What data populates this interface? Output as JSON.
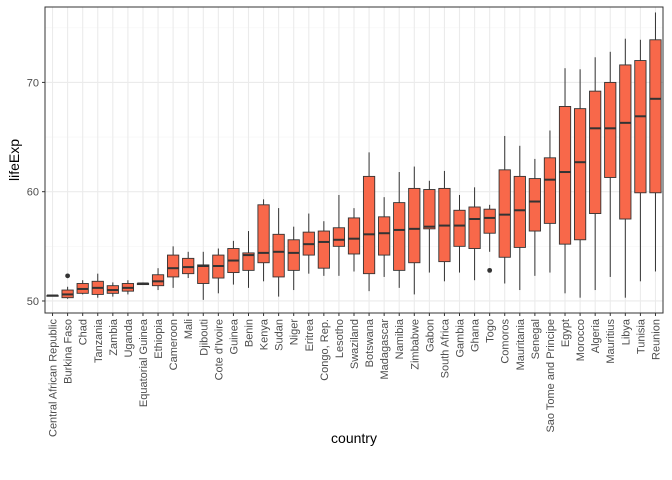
{
  "chart_data": {
    "type": "boxplot",
    "title": "",
    "xlabel": "country",
    "ylabel": "lifeExp",
    "ylim": [
      48.9,
      76.9
    ],
    "yticks": [
      50,
      60,
      70
    ],
    "grid": true,
    "colors": {
      "box_fill": "#F8684A",
      "line": "#333333",
      "panel_border": "#333333",
      "grid_major": "#EBEBEB",
      "grid_minor": "#F5F5F5"
    },
    "boxes": [
      {
        "category": "Central African Republic",
        "min": 50.5,
        "q1": 50.5,
        "median": 50.5,
        "q3": 50.5,
        "max": 50.5,
        "outliers": []
      },
      {
        "category": "Burkina Faso",
        "min": 50.2,
        "q1": 50.3,
        "median": 50.6,
        "q3": 51.0,
        "max": 51.3,
        "outliers": [
          52.3
        ]
      },
      {
        "category": "Chad",
        "min": 50.6,
        "q1": 50.7,
        "median": 51.1,
        "q3": 51.6,
        "max": 51.9,
        "outliers": []
      },
      {
        "category": "Tanzania",
        "min": 50.3,
        "q1": 50.6,
        "median": 51.2,
        "q3": 51.8,
        "max": 52.5,
        "outliers": []
      },
      {
        "category": "Zambia",
        "min": 50.4,
        "q1": 50.7,
        "median": 51.0,
        "q3": 51.4,
        "max": 51.7,
        "outliers": []
      },
      {
        "category": "Uganda",
        "min": 50.6,
        "q1": 50.9,
        "median": 51.2,
        "q3": 51.6,
        "max": 51.9,
        "outliers": []
      },
      {
        "category": "Equatorial Guinea",
        "min": 51.5,
        "q1": 51.5,
        "median": 51.6,
        "q3": 51.6,
        "max": 51.7,
        "outliers": []
      },
      {
        "category": "Ethiopia",
        "min": 51.0,
        "q1": 51.4,
        "median": 51.8,
        "q3": 52.4,
        "max": 53.0,
        "outliers": []
      },
      {
        "category": "Cameroon",
        "min": 51.2,
        "q1": 52.2,
        "median": 53.0,
        "q3": 54.2,
        "max": 55.0,
        "outliers": []
      },
      {
        "category": "Mali",
        "min": 52.1,
        "q1": 52.5,
        "median": 53.1,
        "q3": 53.9,
        "max": 54.5,
        "outliers": []
      },
      {
        "category": "Djibouti",
        "min": 50.1,
        "q1": 51.6,
        "median": 53.2,
        "q3": 53.3,
        "max": 54.5,
        "outliers": []
      },
      {
        "category": "Cote d'Ivoire",
        "min": 50.7,
        "q1": 52.1,
        "median": 53.2,
        "q3": 54.2,
        "max": 54.8,
        "outliers": []
      },
      {
        "category": "Guinea",
        "min": 51.5,
        "q1": 52.6,
        "median": 53.7,
        "q3": 54.8,
        "max": 55.5,
        "outliers": []
      },
      {
        "category": "Benin",
        "min": 51.2,
        "q1": 52.8,
        "median": 54.2,
        "q3": 54.4,
        "max": 56.4,
        "outliers": []
      },
      {
        "category": "Kenya",
        "min": 51.8,
        "q1": 53.5,
        "median": 54.4,
        "q3": 58.8,
        "max": 59.3,
        "outliers": []
      },
      {
        "category": "Sudan",
        "min": 50.4,
        "q1": 52.2,
        "median": 54.5,
        "q3": 56.1,
        "max": 58.5,
        "outliers": []
      },
      {
        "category": "Niger",
        "min": 51.0,
        "q1": 52.8,
        "median": 54.4,
        "q3": 55.6,
        "max": 56.8,
        "outliers": []
      },
      {
        "category": "Eritrea",
        "min": 52.5,
        "q1": 54.2,
        "median": 55.2,
        "q3": 56.3,
        "max": 58.0,
        "outliers": []
      },
      {
        "category": "Congo, Rep.",
        "min": 52.3,
        "q1": 53.0,
        "median": 55.4,
        "q3": 56.4,
        "max": 57.3,
        "outliers": []
      },
      {
        "category": "Lesotho",
        "min": 52.3,
        "q1": 55.0,
        "median": 55.6,
        "q3": 56.7,
        "max": 59.7,
        "outliers": []
      },
      {
        "category": "Swaziland",
        "min": 52.7,
        "q1": 54.3,
        "median": 55.7,
        "q3": 57.6,
        "max": 58.5,
        "outliers": []
      },
      {
        "category": "Botswana",
        "min": 50.9,
        "q1": 52.5,
        "median": 56.1,
        "q3": 61.4,
        "max": 63.6,
        "outliers": []
      },
      {
        "category": "Madagascar",
        "min": 52.2,
        "q1": 54.2,
        "median": 56.2,
        "q3": 57.7,
        "max": 59.5,
        "outliers": []
      },
      {
        "category": "Namibia",
        "min": 51.2,
        "q1": 52.8,
        "median": 56.5,
        "q3": 59.0,
        "max": 61.8,
        "outliers": []
      },
      {
        "category": "Zimbabwe",
        "min": 50.6,
        "q1": 53.5,
        "median": 56.6,
        "q3": 60.3,
        "max": 62.3,
        "outliers": []
      },
      {
        "category": "Gabon",
        "min": 52.6,
        "q1": 56.6,
        "median": 56.8,
        "q3": 60.2,
        "max": 61.0,
        "outliers": []
      },
      {
        "category": "South Africa",
        "min": 51.8,
        "q1": 53.6,
        "median": 56.9,
        "q3": 60.3,
        "max": 61.9,
        "outliers": []
      },
      {
        "category": "Gambia",
        "min": 52.6,
        "q1": 55.0,
        "median": 56.9,
        "q3": 58.3,
        "max": 59.7,
        "outliers": []
      },
      {
        "category": "Ghana",
        "min": 51.9,
        "q1": 54.8,
        "median": 57.5,
        "q3": 58.6,
        "max": 60.4,
        "outliers": []
      },
      {
        "category": "Togo",
        "min": 54.5,
        "q1": 56.2,
        "median": 57.6,
        "q3": 58.4,
        "max": 58.8,
        "outliers": [
          52.8
        ]
      },
      {
        "category": "Comoros",
        "min": 51.6,
        "q1": 54.0,
        "median": 57.9,
        "q3": 62.0,
        "max": 65.1,
        "outliers": []
      },
      {
        "category": "Mauritania",
        "min": 51.0,
        "q1": 54.9,
        "median": 58.3,
        "q3": 61.4,
        "max": 64.2,
        "outliers": []
      },
      {
        "category": "Senegal",
        "min": 52.3,
        "q1": 56.4,
        "median": 59.1,
        "q3": 61.2,
        "max": 63.0,
        "outliers": []
      },
      {
        "category": "Sao Tome and Principe",
        "min": 52.6,
        "q1": 57.1,
        "median": 61.1,
        "q3": 63.1,
        "max": 65.6,
        "outliers": []
      },
      {
        "category": "Egypt",
        "min": 50.7,
        "q1": 55.2,
        "median": 61.8,
        "q3": 67.8,
        "max": 71.3,
        "outliers": []
      },
      {
        "category": "Morocco",
        "min": 50.3,
        "q1": 55.6,
        "median": 62.7,
        "q3": 67.6,
        "max": 71.2,
        "outliers": []
      },
      {
        "category": "Algeria",
        "min": 51.0,
        "q1": 58.0,
        "median": 65.8,
        "q3": 69.2,
        "max": 72.3,
        "outliers": []
      },
      {
        "category": "Mauritius",
        "min": 52.2,
        "q1": 61.3,
        "median": 65.8,
        "q3": 70.0,
        "max": 72.8,
        "outliers": []
      },
      {
        "category": "Libya",
        "min": 50.3,
        "q1": 57.5,
        "median": 66.3,
        "q3": 71.6,
        "max": 74.0,
        "outliers": []
      },
      {
        "category": "Tunisia",
        "min": 51.8,
        "q1": 59.9,
        "median": 66.9,
        "q3": 72.0,
        "max": 73.9,
        "outliers": []
      },
      {
        "category": "Reunion",
        "min": 52.7,
        "q1": 59.9,
        "median": 68.5,
        "q3": 73.9,
        "max": 76.4,
        "outliers": []
      }
    ]
  }
}
